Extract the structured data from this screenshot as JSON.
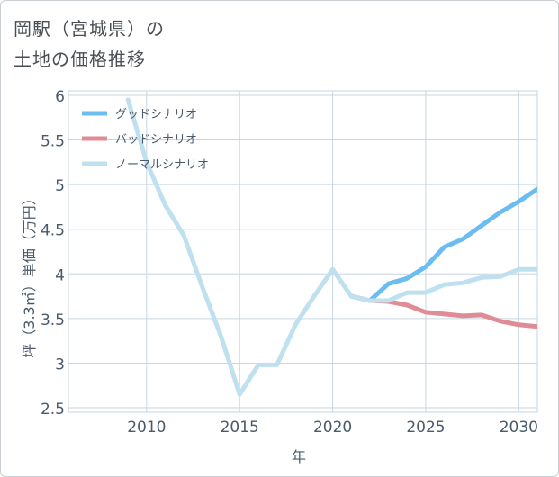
{
  "title": {
    "line1": "岡駅（宮城県）の",
    "line2": "土地の価格推移"
  },
  "chart_data": {
    "type": "line",
    "xlabel": "年",
    "ylabel": "坪（3.3㎡）単価（万円）",
    "xlim": [
      2005.8,
      2031
    ],
    "ylim": [
      2.45,
      6.05
    ],
    "x_ticks": [
      2010,
      2015,
      2020,
      2025,
      2030
    ],
    "y_ticks": [
      2.5,
      3,
      3.5,
      4,
      4.5,
      5,
      5.5,
      6
    ],
    "legend_position": "top-left",
    "series": [
      {
        "name": "グッドシナリオ",
        "color": "#6bbcf0",
        "points": [
          [
            2021,
            3.75
          ],
          [
            2022,
            3.7
          ],
          [
            2023,
            3.89
          ],
          [
            2024,
            3.95
          ],
          [
            2025,
            4.08
          ],
          [
            2026,
            4.3
          ],
          [
            2027,
            4.39
          ],
          [
            2028,
            4.54
          ],
          [
            2029,
            4.69
          ],
          [
            2030,
            4.81
          ],
          [
            2031,
            4.95
          ]
        ]
      },
      {
        "name": "バッドシナリオ",
        "color": "#e08c96",
        "points": [
          [
            2021,
            3.75
          ],
          [
            2022,
            3.7
          ],
          [
            2023,
            3.69
          ],
          [
            2024,
            3.65
          ],
          [
            2025,
            3.57
          ],
          [
            2026,
            3.55
          ],
          [
            2027,
            3.53
          ],
          [
            2028,
            3.54
          ],
          [
            2029,
            3.47
          ],
          [
            2030,
            3.43
          ],
          [
            2031,
            3.41
          ]
        ]
      },
      {
        "name": "ノーマルシナリオ",
        "color": "#bfe0ef",
        "points": [
          [
            2009,
            5.95
          ],
          [
            2010,
            5.25
          ],
          [
            2011,
            4.77
          ],
          [
            2012,
            4.43
          ],
          [
            2013,
            3.85
          ],
          [
            2014,
            3.3
          ],
          [
            2015,
            2.65
          ],
          [
            2016,
            2.98
          ],
          [
            2017,
            2.98
          ],
          [
            2018,
            3.43
          ],
          [
            2019,
            3.75
          ],
          [
            2020,
            4.05
          ],
          [
            2021,
            3.75
          ],
          [
            2022,
            3.7
          ],
          [
            2023,
            3.7
          ],
          [
            2024,
            3.79
          ],
          [
            2025,
            3.79
          ],
          [
            2026,
            3.88
          ],
          [
            2027,
            3.9
          ],
          [
            2028,
            3.96
          ],
          [
            2029,
            3.97
          ],
          [
            2030,
            4.05
          ],
          [
            2031,
            4.05
          ]
        ]
      }
    ]
  }
}
